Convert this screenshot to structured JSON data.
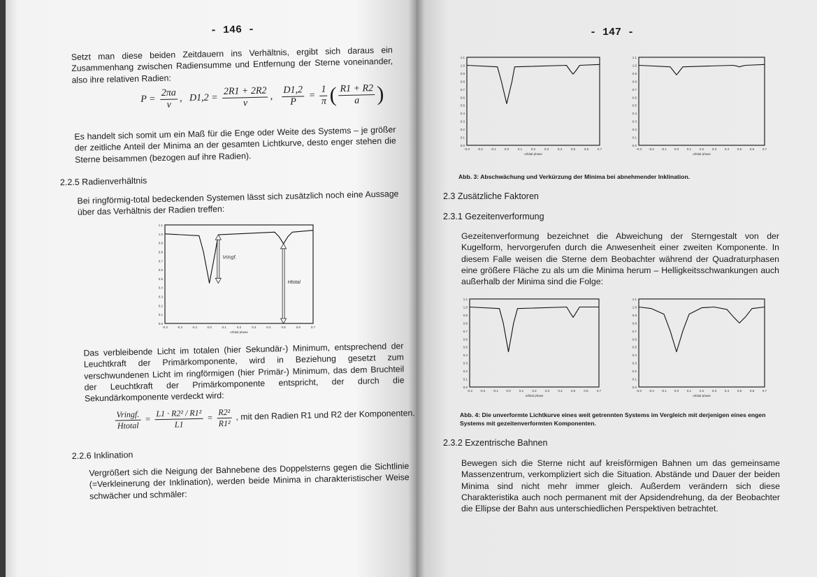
{
  "left_page": {
    "page_number": "- 146 -",
    "para1": "Setzt man diese beiden Zeitdauern ins Verhältnis, ergibt sich daraus ein Zusammenhang zwischen Radiensumme und Entfernung der Sterne voneinander, also ihre relativen Radien:",
    "formula1": {
      "p_lhs": "P =",
      "p_num": "2πa",
      "p_den": "v",
      "sep1": ",",
      "d_lhs": "D1,2 =",
      "d_num": "2R1 + 2R2",
      "d_den": "v",
      "sep2": ",",
      "r_num": "D1,2",
      "r_den": "P",
      "eq": "=",
      "c_num": "1",
      "c_den": "π",
      "open": "(",
      "in_num": "R1 + R2",
      "in_den": "a",
      "close": ")"
    },
    "para2": "Es handelt sich somit um ein Maß für die Enge oder Weite des Systems – je größer der zeitliche Anteil der Minima an der gesamten Lichtkurve, desto enger stehen die Sterne beisammen (bezogen auf ihre Radien).",
    "heading_225": "2.2.5   Radienverhältnis",
    "para3": "Bei ringförmig-total bedeckenden Systemen lässt sich zusätzlich noch eine Aussage über das Verhältnis der Radien treffen:",
    "para4": "Das verbleibende Licht im totalen (hier Sekundär-) Minimum, entsprechend der Leuchtkraft der Primärkomponente, wird in Beziehung gesetzt zum verschwundenen Licht im ringförmigen (hier Primär-) Minimum, das dem Bruchteil der Leuchtkraft der Primärkomponente entspricht, der durch die Sekundärkomponente verdeckt wird:",
    "formula2": {
      "a_num": "Vringf.",
      "a_den": "Htotal",
      "eq1": "=",
      "b_num": "L1 · R2² / R1²",
      "b_den": "L1",
      "eq2": "=",
      "c_num": "R2²",
      "c_den": "R1²",
      "text": ", mit den Radien R1 und R2 der Komponenten."
    },
    "heading_226": "2.2.6   Inklination",
    "para5": "Vergrößert sich die Neigung der Bahnebene des Doppelsterns gegen die Sichtlinie (=Verkleinerung der Inklination), werden beide Minima in charakteristischer Weise schwächer und schmäler:"
  },
  "right_page": {
    "page_number": "- 147 -",
    "caption_abb3": "Abb. 3: Abschwächung und Verkürzung der Minima bei abnehmender Inklination.",
    "heading_23": "2.3 Zusätzliche Faktoren",
    "heading_231": "2.3.1   Gezeitenverformung",
    "para1": "Gezeitenverformung bezeichnet die Abweichung der Sterngestalt von der Kugelform, hervorgerufen durch die Anwesenheit einer zweiten Komponente. In diesem Falle weisen die Sterne dem Beobachter während der Quadraturphasen eine größere Fläche zu als um die Minima herum – Helligkeitsschwankungen auch außerhalb der Minima sind die Folge:",
    "caption_abb4": "Abb. 4: Die unverformte Lichtkurve eines weit getrennten Systems im Vergleich mit derjenigen eines engen Systems mit gezeitenverformten Komponenten.",
    "heading_232": "2.3.2   Exzentrische Bahnen",
    "para2": "Bewegen sich die Sterne nicht auf kreisförmigen Bahnen um das gemeinsame Massenzentrum, verkompliziert sich die Situation. Abstände und Dauer der beiden Minima sind nicht mehr immer gleich. Außerdem verändern sich diese Charakteristika auch noch permanent mit der Apsidendrehung, da der Beobachter die Ellipse der Bahn aus unterschiedlichen Perspektiven betrachtet."
  },
  "chart_data": [
    {
      "id": "radius-ratio",
      "type": "line",
      "xlabel": "orbital phase",
      "xlim": [
        -0.3,
        0.7
      ],
      "ylim": [
        0,
        1.1
      ],
      "xticks": [
        "-0.3",
        "-0.2",
        "-0.1",
        "0.0",
        "0.1",
        "0.2",
        "0.3",
        "0.4",
        "0.5",
        "0.6",
        "0.7"
      ],
      "yticks": [
        "0.0",
        "0.1",
        "0.2",
        "0.3",
        "0.4",
        "0.5",
        "0.6",
        "0.7",
        "0.8",
        "0.9",
        "1.0",
        "1.1"
      ],
      "x": [
        -0.3,
        -0.07,
        -0.04,
        0,
        0.04,
        0.06,
        0.44,
        0.47,
        0.5,
        0.53,
        0.56,
        0.7
      ],
      "y": [
        1.0,
        0.98,
        0.8,
        0.45,
        0.8,
        0.99,
        1.02,
        0.97,
        0.89,
        0.97,
        1.02,
        1.04
      ],
      "annotations": [
        {
          "label": "Vringf.",
          "x": 0.06,
          "from": 0.99,
          "to": 0.45
        },
        {
          "label": "Htotal",
          "x": 0.5,
          "from": 0.89,
          "to": 0.0
        }
      ]
    },
    {
      "id": "abb3-left",
      "type": "line",
      "xlabel": "orbital phase",
      "xlim": [
        -0.3,
        0.7
      ],
      "ylim": [
        0,
        1.1
      ],
      "xticks": [
        "-0.3",
        "-0.2",
        "-0.1",
        "0.0",
        "0.1",
        "0.2",
        "0.3",
        "0.4",
        "0.5",
        "0.6",
        "0.7"
      ],
      "yticks": [
        "0.0",
        "0.1",
        "0.2",
        "0.3",
        "0.4",
        "0.5",
        "0.6",
        "0.7",
        "0.8",
        "0.9",
        "1.0",
        "1.1"
      ],
      "x": [
        -0.3,
        -0.07,
        -0.04,
        0,
        0.04,
        0.06,
        0.45,
        0.48,
        0.5,
        0.52,
        0.55,
        0.7
      ],
      "y": [
        1.0,
        0.98,
        0.8,
        0.52,
        0.8,
        0.98,
        1.0,
        0.93,
        0.89,
        0.93,
        1.0,
        1.01
      ]
    },
    {
      "id": "abb3-right",
      "type": "line",
      "xlabel": "orbital phase",
      "xlim": [
        -0.3,
        0.7
      ],
      "ylim": [
        0,
        1.1
      ],
      "xticks": [
        "-0.3",
        "-0.2",
        "-0.1",
        "0.0",
        "0.1",
        "0.2",
        "0.3",
        "0.4",
        "0.5",
        "0.6",
        "0.7"
      ],
      "yticks": [
        "0.0",
        "0.1",
        "0.2",
        "0.3",
        "0.4",
        "0.5",
        "0.6",
        "0.7",
        "0.8",
        "0.9",
        "1.0",
        "1.1"
      ],
      "x": [
        -0.3,
        -0.05,
        -0.02,
        0,
        0.02,
        0.05,
        0.45,
        0.48,
        0.5,
        0.52,
        0.55,
        0.7
      ],
      "y": [
        1.0,
        0.98,
        0.92,
        0.88,
        0.92,
        0.98,
        1.0,
        0.99,
        0.98,
        0.99,
        1.0,
        1.01
      ]
    },
    {
      "id": "abb4-left",
      "type": "line",
      "xlabel": "orbital phase",
      "xlim": [
        -0.3,
        0.7
      ],
      "ylim": [
        0,
        1.1
      ],
      "xticks": [
        "-0.3",
        "-0.2",
        "-0.1",
        "0.0",
        "0.1",
        "0.2",
        "0.3",
        "0.4",
        "0.5",
        "0.6",
        "0.7"
      ],
      "yticks": [
        "0.0",
        "0.1",
        "0.2",
        "0.3",
        "0.4",
        "0.5",
        "0.6",
        "0.7",
        "0.8",
        "0.9",
        "1.0",
        "1.1"
      ],
      "x": [
        -0.3,
        -0.07,
        -0.04,
        0,
        0.04,
        0.07,
        0.45,
        0.48,
        0.5,
        0.52,
        0.55,
        0.7
      ],
      "y": [
        1.0,
        0.98,
        0.8,
        0.44,
        0.8,
        0.98,
        1.0,
        0.92,
        0.87,
        0.92,
        1.0,
        1.0
      ]
    },
    {
      "id": "abb4-right",
      "type": "line",
      "xlabel": "orbital phase",
      "xlim": [
        -0.3,
        0.7
      ],
      "ylim": [
        0,
        1.1
      ],
      "xticks": [
        "-0.3",
        "-0.2",
        "-0.1",
        "0.0",
        "0.1",
        "0.2",
        "0.3",
        "0.4",
        "0.5",
        "0.6",
        "0.7"
      ],
      "yticks": [
        "0.0",
        "0.1",
        "0.2",
        "0.3",
        "0.4",
        "0.5",
        "0.6",
        "0.7",
        "0.8",
        "0.9",
        "1.0",
        "1.1"
      ],
      "x": [
        -0.3,
        -0.2,
        -0.1,
        -0.05,
        0,
        0.05,
        0.1,
        0.2,
        0.3,
        0.4,
        0.45,
        0.5,
        0.55,
        0.6,
        0.7
      ],
      "y": [
        1.0,
        0.98,
        0.91,
        0.7,
        0.44,
        0.7,
        0.91,
        0.99,
        1.0,
        0.97,
        0.88,
        0.8,
        0.88,
        0.98,
        1.0
      ]
    }
  ]
}
